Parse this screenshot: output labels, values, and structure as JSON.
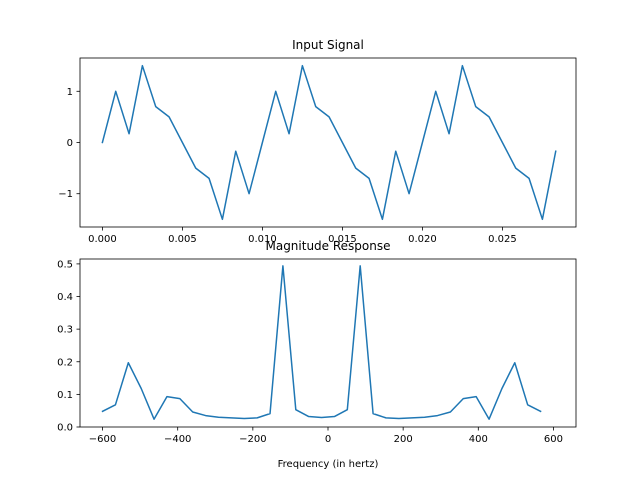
{
  "chart_data": [
    {
      "type": "line",
      "title": "Input Signal",
      "xlabel": "",
      "ylabel": "",
      "xlim": [
        -0.0014,
        0.0296
      ],
      "ylim": [
        -1.65,
        1.65
      ],
      "xticks": [
        0.0,
        0.005,
        0.01,
        0.015,
        0.02,
        0.025
      ],
      "xtick_labels": [
        "0.000",
        "0.005",
        "0.010",
        "0.015",
        "0.020",
        "0.025"
      ],
      "yticks": [
        -1,
        0,
        1
      ],
      "ytick_labels": [
        "−1",
        "0",
        "1"
      ],
      "grid": false,
      "color": "#1f77b4",
      "series": [
        {
          "x": [
            0.0,
            0.000833,
            0.001667,
            0.0025,
            0.003333,
            0.004167,
            0.005,
            0.005833,
            0.006667,
            0.0075,
            0.008333,
            0.009167,
            0.01,
            0.010833,
            0.011667,
            0.0125,
            0.013333,
            0.014167,
            0.015,
            0.015833,
            0.016667,
            0.0175,
            0.018333,
            0.019167,
            0.02,
            0.020833,
            0.021667,
            0.0225,
            0.023333,
            0.024167,
            0.025,
            0.025833,
            0.026667,
            0.0275,
            0.028333
          ],
          "values": [
            0.0,
            1.0,
            0.17,
            1.5,
            0.7,
            0.5,
            0.0,
            -0.5,
            -0.7,
            -1.5,
            -0.17,
            -1.0,
            0.0,
            1.0,
            0.17,
            1.5,
            0.7,
            0.5,
            0.0,
            -0.5,
            -0.7,
            -1.5,
            -0.17,
            -1.0,
            0.0,
            1.0,
            0.17,
            1.5,
            0.7,
            0.5,
            0.0,
            -0.5,
            -0.7,
            -1.5,
            -0.17
          ]
        }
      ]
    },
    {
      "type": "line",
      "title": "Magnitude Response",
      "xlabel": "Frequency (in hertz)",
      "ylabel": "",
      "xlim": [
        -660,
        660
      ],
      "ylim": [
        0.0,
        0.515
      ],
      "xticks": [
        -600,
        -400,
        -200,
        0,
        200,
        400,
        600
      ],
      "xtick_labels": [
        "−600",
        "−400",
        "−200",
        "0",
        "200",
        "400",
        "600"
      ],
      "yticks": [
        0.0,
        0.1,
        0.2,
        0.3,
        0.4,
        0.5
      ],
      "ytick_labels": [
        "0.0",
        "0.1",
        "0.2",
        "0.3",
        "0.4",
        "0.5"
      ],
      "grid": false,
      "color": "#1f77b4",
      "series": [
        {
          "x": [
            -600,
            -565.7,
            -531.4,
            -497.1,
            -462.9,
            -428.6,
            -394.3,
            -360,
            -325.7,
            -291.4,
            -257.1,
            -222.9,
            -188.6,
            -154.3,
            -120,
            -85.7,
            -51.4,
            -17.1,
            17.1,
            51.4,
            85.7,
            120,
            154.3,
            188.6,
            222.9,
            257.1,
            291.4,
            325.7,
            360,
            394.3,
            428.6,
            462.9,
            497.1,
            531.4,
            565.7
          ],
          "values": [
            0.048,
            0.068,
            0.197,
            0.118,
            0.024,
            0.093,
            0.087,
            0.046,
            0.035,
            0.03,
            0.028,
            0.026,
            0.028,
            0.041,
            0.494,
            0.053,
            0.032,
            0.029,
            0.032,
            0.053,
            0.494,
            0.041,
            0.028,
            0.026,
            0.028,
            0.03,
            0.035,
            0.046,
            0.087,
            0.093,
            0.024,
            0.118,
            0.197,
            0.068,
            0.048
          ]
        }
      ]
    }
  ]
}
